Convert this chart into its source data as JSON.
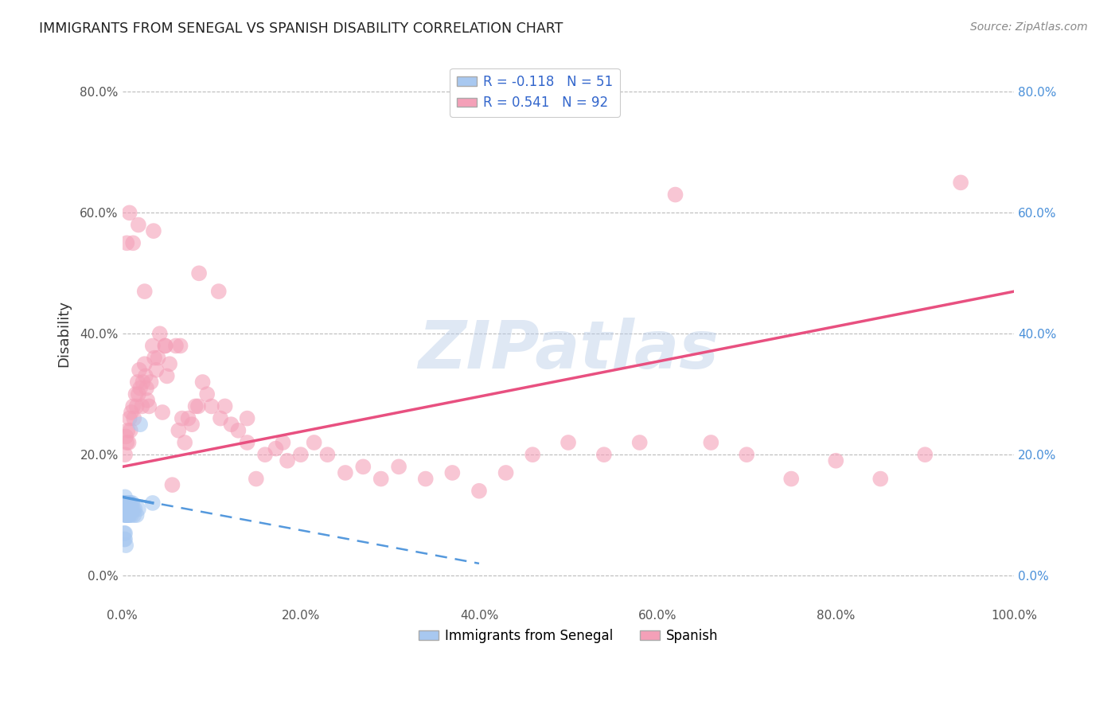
{
  "title": "IMMIGRANTS FROM SENEGAL VS SPANISH DISABILITY CORRELATION CHART",
  "source": "Source: ZipAtlas.com",
  "ylabel": "Disability",
  "watermark": "ZIPatlas",
  "legend_blue_R": "-0.118",
  "legend_blue_N": "51",
  "legend_pink_R": "0.541",
  "legend_pink_N": "92",
  "blue_color": "#a8c8f0",
  "pink_color": "#f4a0b8",
  "blue_line_color": "#5599dd",
  "pink_line_color": "#e85080",
  "background_color": "#ffffff",
  "grid_color": "#bbbbbb",
  "blue_points_x": [
    0.003,
    0.003,
    0.003,
    0.003,
    0.003,
    0.003,
    0.003,
    0.003,
    0.004,
    0.004,
    0.004,
    0.004,
    0.004,
    0.004,
    0.004,
    0.004,
    0.005,
    0.005,
    0.005,
    0.005,
    0.005,
    0.005,
    0.006,
    0.006,
    0.006,
    0.006,
    0.006,
    0.007,
    0.007,
    0.007,
    0.007,
    0.008,
    0.008,
    0.008,
    0.009,
    0.009,
    0.01,
    0.01,
    0.011,
    0.012,
    0.013,
    0.014,
    0.016,
    0.018,
    0.003,
    0.003,
    0.002,
    0.002,
    0.02,
    0.034,
    0.004
  ],
  "blue_points_y": [
    0.12,
    0.13,
    0.11,
    0.12,
    0.1,
    0.11,
    0.12,
    0.11,
    0.12,
    0.12,
    0.11,
    0.1,
    0.12,
    0.11,
    0.1,
    0.11,
    0.11,
    0.12,
    0.1,
    0.11,
    0.12,
    0.11,
    0.11,
    0.12,
    0.1,
    0.11,
    0.12,
    0.12,
    0.11,
    0.1,
    0.12,
    0.11,
    0.1,
    0.12,
    0.11,
    0.12,
    0.11,
    0.1,
    0.12,
    0.11,
    0.1,
    0.11,
    0.1,
    0.11,
    0.07,
    0.06,
    0.07,
    0.06,
    0.25,
    0.12,
    0.05
  ],
  "pink_points_x": [
    0.003,
    0.004,
    0.005,
    0.006,
    0.007,
    0.008,
    0.009,
    0.01,
    0.012,
    0.013,
    0.015,
    0.016,
    0.017,
    0.018,
    0.019,
    0.02,
    0.022,
    0.023,
    0.025,
    0.026,
    0.027,
    0.028,
    0.03,
    0.032,
    0.034,
    0.036,
    0.038,
    0.04,
    0.042,
    0.045,
    0.048,
    0.05,
    0.053,
    0.056,
    0.06,
    0.063,
    0.067,
    0.07,
    0.074,
    0.078,
    0.082,
    0.086,
    0.09,
    0.095,
    0.1,
    0.108,
    0.115,
    0.122,
    0.13,
    0.14,
    0.15,
    0.16,
    0.172,
    0.185,
    0.2,
    0.215,
    0.23,
    0.25,
    0.27,
    0.29,
    0.31,
    0.34,
    0.37,
    0.4,
    0.43,
    0.46,
    0.5,
    0.54,
    0.58,
    0.62,
    0.66,
    0.7,
    0.75,
    0.8,
    0.85,
    0.9,
    0.94,
    0.005,
    0.008,
    0.012,
    0.018,
    0.025,
    0.035,
    0.048,
    0.065,
    0.085,
    0.11,
    0.14,
    0.18
  ],
  "pink_points_y": [
    0.2,
    0.23,
    0.22,
    0.24,
    0.22,
    0.26,
    0.24,
    0.27,
    0.28,
    0.26,
    0.3,
    0.28,
    0.32,
    0.3,
    0.34,
    0.31,
    0.28,
    0.32,
    0.35,
    0.33,
    0.31,
    0.29,
    0.28,
    0.32,
    0.38,
    0.36,
    0.34,
    0.36,
    0.4,
    0.27,
    0.38,
    0.33,
    0.35,
    0.15,
    0.38,
    0.24,
    0.26,
    0.22,
    0.26,
    0.25,
    0.28,
    0.5,
    0.32,
    0.3,
    0.28,
    0.47,
    0.28,
    0.25,
    0.24,
    0.26,
    0.16,
    0.2,
    0.21,
    0.19,
    0.2,
    0.22,
    0.2,
    0.17,
    0.18,
    0.16,
    0.18,
    0.16,
    0.17,
    0.14,
    0.17,
    0.2,
    0.22,
    0.2,
    0.22,
    0.63,
    0.22,
    0.2,
    0.16,
    0.19,
    0.16,
    0.2,
    0.65,
    0.55,
    0.6,
    0.55,
    0.58,
    0.47,
    0.57,
    0.38,
    0.38,
    0.28,
    0.26,
    0.22,
    0.22
  ],
  "xlim": [
    0.0,
    1.0
  ],
  "ylim": [
    -0.05,
    0.85
  ],
  "yticks": [
    0.0,
    0.2,
    0.4,
    0.6,
    0.8
  ],
  "ytick_labels": [
    "0.0%",
    "20.0%",
    "40.0%",
    "60.0%",
    "80.0%"
  ],
  "xticks": [
    0.0,
    0.2,
    0.4,
    0.6,
    0.8,
    1.0
  ],
  "xtick_labels": [
    "0.0%",
    "20.0%",
    "40.0%",
    "60.0%",
    "80.0%",
    "100.0%"
  ],
  "pink_line_x": [
    0.0,
    1.0
  ],
  "pink_line_y": [
    0.18,
    0.47
  ],
  "blue_line_x": [
    0.0,
    0.4
  ],
  "blue_line_y": [
    0.13,
    0.02
  ]
}
